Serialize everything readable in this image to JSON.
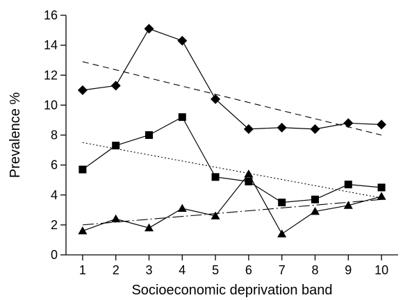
{
  "chart_data": {
    "type": "line",
    "title": "",
    "xlabel": "Socioeconomic deprivation band",
    "ylabel": "Prevalence  %",
    "x": [
      1,
      2,
      3,
      4,
      5,
      6,
      7,
      8,
      9,
      10
    ],
    "xlim": [
      0.5,
      10.5
    ],
    "ylim": [
      0,
      16
    ],
    "x_ticks": [
      1,
      2,
      3,
      4,
      5,
      6,
      7,
      8,
      9,
      10
    ],
    "y_ticks": [
      0,
      2,
      4,
      6,
      8,
      10,
      12,
      14,
      16
    ],
    "grid": false,
    "legend": "none",
    "series": [
      {
        "marker": "diamond",
        "values": [
          11.0,
          11.3,
          15.1,
          14.3,
          10.4,
          8.4,
          8.5,
          8.4,
          8.8,
          8.7
        ]
      },
      {
        "marker": "square",
        "values": [
          5.7,
          7.3,
          8.0,
          9.2,
          5.2,
          4.9,
          3.5,
          3.7,
          4.7,
          4.5
        ]
      },
      {
        "marker": "triangle",
        "values": [
          1.6,
          2.4,
          1.8,
          3.1,
          2.6,
          5.4,
          1.4,
          2.9,
          3.3,
          3.9
        ]
      }
    ],
    "trendlines": [
      {
        "style": "dashed",
        "x": [
          1,
          10
        ],
        "y": [
          12.9,
          8.0
        ]
      },
      {
        "style": "dotted",
        "x": [
          1,
          10
        ],
        "y": [
          7.5,
          3.8
        ]
      },
      {
        "style": "dash-dot",
        "x": [
          1,
          10
        ],
        "y": [
          2.0,
          3.7
        ]
      }
    ]
  }
}
